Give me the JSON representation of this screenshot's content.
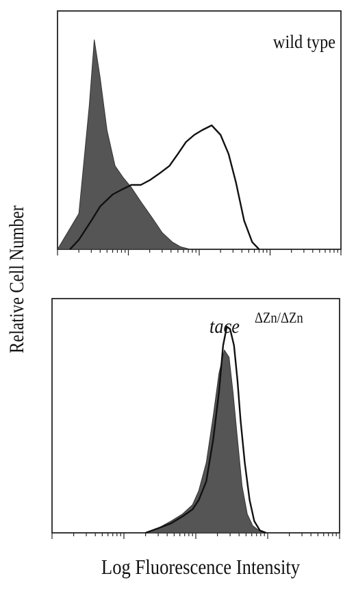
{
  "figure": {
    "ylabel": "Relative Cell Number",
    "xlabel": "Log Fluorescence Intensity"
  },
  "chart_data": [
    {
      "type": "area",
      "panel_label": "wild type",
      "x_scale": "log",
      "xlim": [
        1,
        10000
      ],
      "ylim": [
        0,
        1
      ],
      "grid": false,
      "colors": {
        "filled": "#555555",
        "outline": "#111111"
      },
      "series": [
        {
          "style": "filled",
          "x": [
            1,
            2,
            2.8,
            3.3,
            4,
            5,
            6.5,
            8.5,
            11,
            15,
            22,
            30,
            42,
            55,
            75
          ],
          "y": [
            0.0,
            0.15,
            0.6,
            0.88,
            0.72,
            0.5,
            0.35,
            0.3,
            0.26,
            0.2,
            0.13,
            0.07,
            0.03,
            0.01,
            0.0
          ]
        },
        {
          "style": "outline",
          "x": [
            1.5,
            2,
            3,
            4,
            6,
            8,
            11,
            15,
            20,
            28,
            38,
            50,
            65,
            85,
            110,
            150,
            200,
            260,
            330,
            430,
            560,
            700
          ],
          "y": [
            0.0,
            0.04,
            0.12,
            0.18,
            0.23,
            0.25,
            0.27,
            0.27,
            0.29,
            0.32,
            0.35,
            0.4,
            0.45,
            0.48,
            0.5,
            0.52,
            0.48,
            0.4,
            0.28,
            0.12,
            0.03,
            0.0
          ]
        }
      ]
    },
    {
      "type": "area",
      "panel_label": "tace",
      "panel_label_superscript": "ΔZn/ΔZn",
      "x_scale": "log",
      "xlim": [
        1,
        10000
      ],
      "ylim": [
        0,
        1
      ],
      "grid": false,
      "colors": {
        "filled": "#555555",
        "outline": "#111111"
      },
      "series": [
        {
          "style": "filled",
          "x": [
            20,
            30,
            45,
            65,
            90,
            110,
            140,
            175,
            210,
            250,
            290,
            330,
            380,
            440,
            520,
            620,
            760,
            900
          ],
          "y": [
            0.0,
            0.02,
            0.05,
            0.08,
            0.12,
            0.18,
            0.3,
            0.5,
            0.68,
            0.78,
            0.75,
            0.6,
            0.4,
            0.2,
            0.08,
            0.03,
            0.01,
            0.0
          ]
        },
        {
          "style": "outline",
          "x": [
            20,
            30,
            45,
            65,
            90,
            110,
            140,
            175,
            210,
            240,
            270,
            300,
            340,
            380,
            420,
            480,
            560,
            650,
            780,
            950
          ],
          "y": [
            0.0,
            0.02,
            0.04,
            0.07,
            0.1,
            0.14,
            0.22,
            0.4,
            0.6,
            0.8,
            0.88,
            0.87,
            0.8,
            0.65,
            0.48,
            0.3,
            0.14,
            0.05,
            0.01,
            0.0
          ]
        }
      ]
    }
  ]
}
